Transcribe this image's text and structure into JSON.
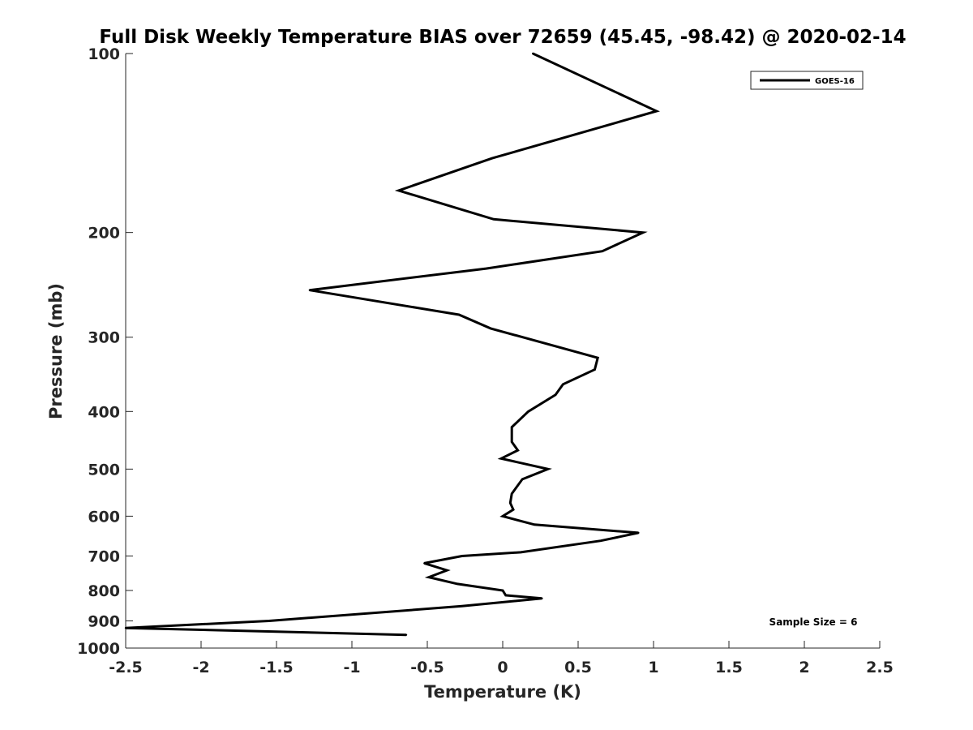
{
  "chart_data": {
    "type": "line",
    "title": "Full Disk Weekly Temperature BIAS over 72659 (45.45, -98.42) @ 2020-02-14",
    "xlabel": "Temperature (K)",
    "ylabel": "Pressure (mb)",
    "xlim": [
      -2.5,
      2.5
    ],
    "ylim": [
      1000,
      100
    ],
    "yscale": "log",
    "xticks": [
      "-2.5",
      "-2",
      "-1.5",
      "-1",
      "-0.5",
      "0",
      "0.5",
      "1",
      "1.5",
      "2",
      "2.5"
    ],
    "yticks": [
      "100",
      "200",
      "300",
      "400",
      "500",
      "600",
      "700",
      "800",
      "900",
      "1000"
    ],
    "grid": false,
    "legend": {
      "placement": "top-right",
      "entries": [
        "GOES-16"
      ]
    },
    "annotation": "Sample Size = 6",
    "series": [
      {
        "name": "GOES-16",
        "color": "#000000",
        "points": [
          [
            0.2,
            100
          ],
          [
            1.02,
            125
          ],
          [
            -0.07,
            150
          ],
          [
            -0.69,
            170
          ],
          [
            -0.06,
            190
          ],
          [
            0.93,
            200
          ],
          [
            0.66,
            215
          ],
          [
            -0.11,
            230
          ],
          [
            -1.28,
            250
          ],
          [
            -0.29,
            275
          ],
          [
            -0.08,
            290
          ],
          [
            0.63,
            325
          ],
          [
            0.61,
            340
          ],
          [
            0.4,
            360
          ],
          [
            0.35,
            375
          ],
          [
            0.17,
            400
          ],
          [
            0.06,
            425
          ],
          [
            0.06,
            450
          ],
          [
            0.1,
            465
          ],
          [
            -0.01,
            480
          ],
          [
            0.3,
            500
          ],
          [
            0.13,
            520
          ],
          [
            0.06,
            550
          ],
          [
            0.05,
            570
          ],
          [
            0.07,
            585
          ],
          [
            0.0,
            600
          ],
          [
            0.21,
            620
          ],
          [
            0.9,
            640
          ],
          [
            0.65,
            660
          ],
          [
            0.12,
            690
          ],
          [
            -0.27,
            700
          ],
          [
            -0.52,
            720
          ],
          [
            -0.37,
            740
          ],
          [
            -0.49,
            760
          ],
          [
            -0.3,
            780
          ],
          [
            0.0,
            800
          ],
          [
            0.02,
            815
          ],
          [
            0.26,
            825
          ],
          [
            -0.27,
            850
          ],
          [
            -1.55,
            900
          ],
          [
            -2.5,
            925
          ],
          [
            -0.64,
            950
          ]
        ]
      }
    ]
  }
}
